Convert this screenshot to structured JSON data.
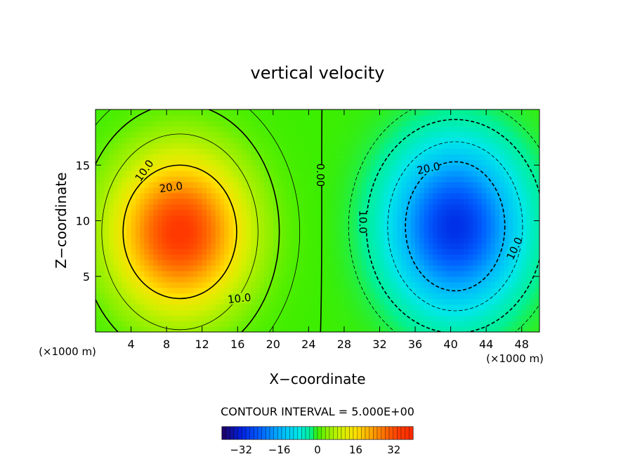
{
  "chart_data": {
    "type": "heatmap",
    "title": "vertical velocity",
    "xlabel": "X−coordinate",
    "ylabel": "Z−coordinate",
    "x_unit_left": "(×1000 m)",
    "x_unit_right": "(×1000 m)",
    "xlim": [
      0,
      50
    ],
    "ylim": [
      0,
      20
    ],
    "x_ticks": [
      4,
      8,
      12,
      16,
      20,
      24,
      28,
      32,
      36,
      40,
      44,
      48
    ],
    "y_ticks": [
      5,
      10,
      15
    ],
    "field": {
      "updraft": {
        "center": [
          9.5,
          9.0
        ],
        "peak": 35
      },
      "downdraft": {
        "center": [
          40.5,
          9.5
        ],
        "peak": -30
      },
      "zero_line_x": 25.5
    },
    "contour_labels": [
      {
        "text": "10.0",
        "x": 5.5,
        "y": 14.5,
        "rotate": -55
      },
      {
        "text": "20.0",
        "x": 8.5,
        "y": 13.0,
        "rotate": -8
      },
      {
        "text": "10.0",
        "x": 16.2,
        "y": 3.0,
        "rotate": -6
      },
      {
        "text": "0.00",
        "x": 25.3,
        "y": 14.1,
        "rotate": 90
      },
      {
        "text": "20.0",
        "x": 37.5,
        "y": 14.7,
        "rotate": -12
      },
      {
        "text": "10.0",
        "x": 30.1,
        "y": 9.9,
        "rotate": 90
      },
      {
        "text": "10.0",
        "x": 47.2,
        "y": 7.5,
        "rotate": -65
      }
    ],
    "contour_interval_text": "CONTOUR INTERVAL = 5.000E+00",
    "colorbar": {
      "min": -40,
      "max": 40,
      "ticks": [
        "−32",
        "−16",
        "0",
        "16",
        "32"
      ],
      "tick_values": [
        -32,
        -16,
        0,
        16,
        32
      ]
    },
    "grid": false,
    "legend": "colorbar-bottom"
  }
}
